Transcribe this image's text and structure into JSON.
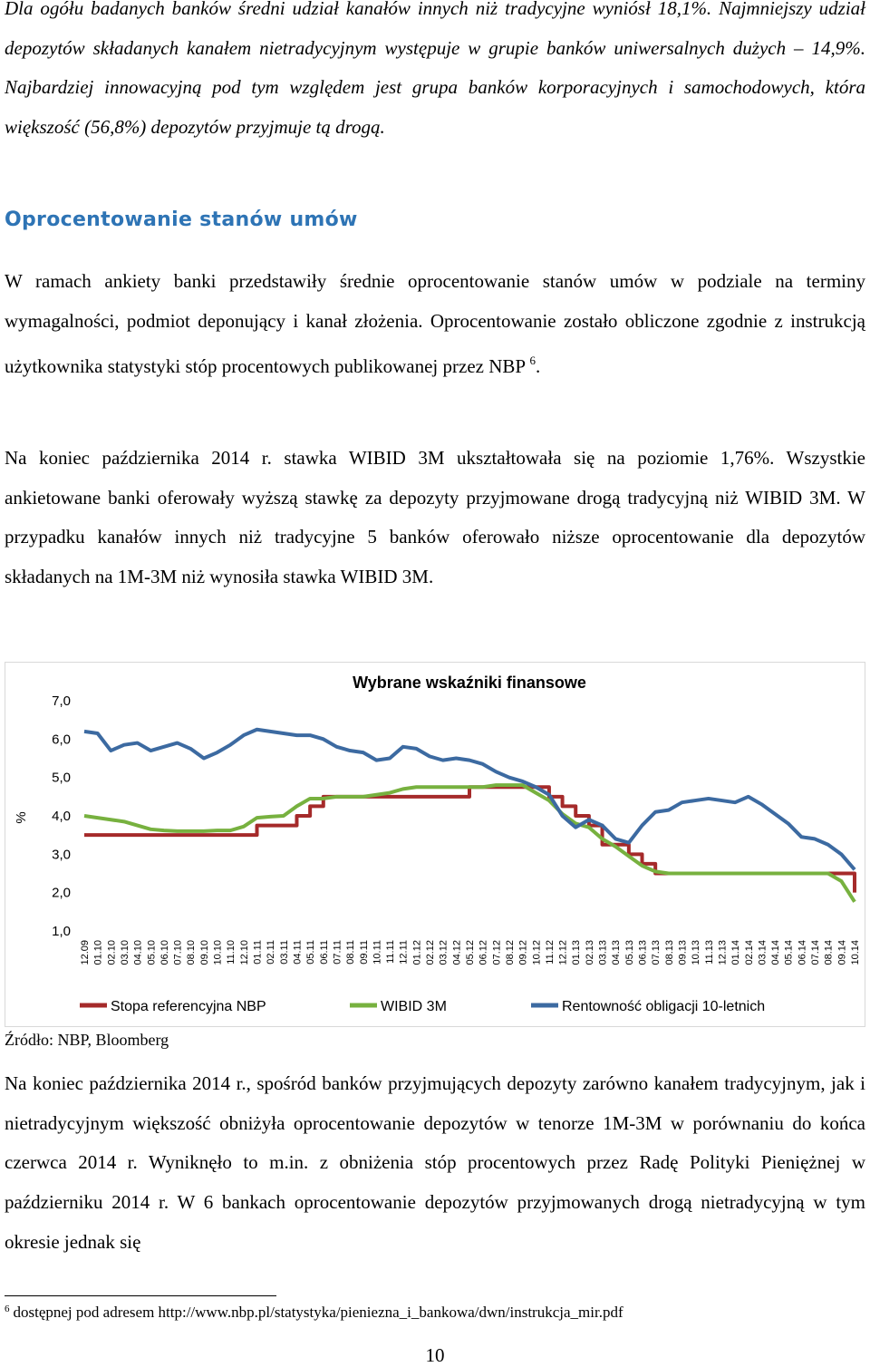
{
  "paragraphs": {
    "p1": "Dla ogółu badanych banków średni udział kanałów innych niż tradycyjne wyniósł 18,1%. Najmniejszy udział depozytów składanych kanałem nietradycyjnym występuje w grupie banków uniwersalnych dużych – 14,9%. Najbardziej innowacyjną pod tym względem jest grupa banków korporacyjnych i samochodowych, która większość (56,8%) depozytów przyjmuje tą drogą.",
    "p2": "W ramach ankiety banki przedstawiły średnie oprocentowanie stanów umów w podziale na terminy wymagalności, podmiot deponujący i kanał złożenia. Oprocentowanie zostało obliczone zgodnie z instrukcją użytkownika statystyki stóp procentowych publikowanej przez NBP",
    "p2_ref": "6",
    "p2_end": ".",
    "p3": "Na koniec października 2014 r. stawka WIBID 3M ukształtowała się na poziomie 1,76%. Wszystkie ankietowane banki oferowały wyższą stawkę za depozyty przyjmowane drogą tradycyjną niż WIBID 3M. W przypadku kanałów innych niż tradycyjne 5 banków oferowało niższe oprocentowanie dla depozytów składanych na 1M-3M niż wynosiła stawka WIBID 3M.",
    "p4": "Na koniec października 2014 r., spośród banków przyjmujących depozyty zarówno kanałem tradycyjnym, jak i nietradycyjnym większość obniżyła oprocentowanie depozytów w tenorze 1M-3M w porównaniu do końca czerwca 2014 r. Wyniknęło to m.in. z obniżenia stóp procentowych przez Radę Polityki Pieniężnej w październiku 2014 r. W 6 bankach oprocentowanie depozytów przyjmowanych drogą nietradycyjną w tym okresie jednak się"
  },
  "heading": "Oprocentowanie stanów umów",
  "source": "Źródło: NBP, Bloomberg",
  "footnote": {
    "number": "6",
    "text": "dostępnej pod adresem http://www.nbp.pl/statystyka/pieniezna_i_bankowa/dwn/instrukcja_mir.pdf"
  },
  "page_number": "10",
  "chart_data": {
    "type": "line",
    "title": "Wybrane wskaźniki finansowe",
    "ylabel": "%",
    "xlabel": "",
    "ylim": [
      1.0,
      7.0
    ],
    "yticks": [
      "7,0",
      "6,0",
      "5,0",
      "4,0",
      "3,0",
      "2,0",
      "1,0"
    ],
    "legend_position": "bottom",
    "x": [
      "12.09",
      "01.10",
      "02.10",
      "03.10",
      "04.10",
      "05.10",
      "06.10",
      "07.10",
      "08.10",
      "09.10",
      "10.10",
      "11.10",
      "12.10",
      "01.11",
      "02.11",
      "03.11",
      "04.11",
      "05.11",
      "06.11",
      "07.11",
      "08.11",
      "09.11",
      "10.11",
      "11.11",
      "12.11",
      "01.12",
      "02.12",
      "03.12",
      "04.12",
      "05.12",
      "06.12",
      "07.12",
      "08.12",
      "09.12",
      "10.12",
      "11.12",
      "12.12",
      "01.13",
      "02.13",
      "03.13",
      "04.13",
      "05.13",
      "06.13",
      "07.13",
      "08.13",
      "09.13",
      "10.13",
      "11.13",
      "12.13",
      "01.14",
      "02.14",
      "03.14",
      "04.14",
      "05.14",
      "06.14",
      "07.14",
      "08.14",
      "09.14",
      "10.14"
    ],
    "series": [
      {
        "name": "Stopa referencyjna NBP",
        "color": "#a52a2a",
        "values": [
          3.5,
          3.5,
          3.5,
          3.5,
          3.5,
          3.5,
          3.5,
          3.5,
          3.5,
          3.5,
          3.5,
          3.5,
          3.5,
          3.75,
          3.75,
          3.75,
          4.0,
          4.25,
          4.5,
          4.5,
          4.5,
          4.5,
          4.5,
          4.5,
          4.5,
          4.5,
          4.5,
          4.5,
          4.5,
          4.75,
          4.75,
          4.75,
          4.75,
          4.75,
          4.75,
          4.5,
          4.25,
          4.0,
          3.75,
          3.25,
          3.25,
          3.0,
          2.75,
          2.5,
          2.5,
          2.5,
          2.5,
          2.5,
          2.5,
          2.5,
          2.5,
          2.5,
          2.5,
          2.5,
          2.5,
          2.5,
          2.5,
          2.5,
          2.0
        ]
      },
      {
        "name": "WIBID 3M",
        "color": "#77b13f",
        "values": [
          4.0,
          3.95,
          3.9,
          3.85,
          3.75,
          3.65,
          3.62,
          3.6,
          3.6,
          3.6,
          3.62,
          3.62,
          3.72,
          3.95,
          3.98,
          4.0,
          4.25,
          4.45,
          4.45,
          4.5,
          4.5,
          4.5,
          4.55,
          4.6,
          4.7,
          4.75,
          4.75,
          4.75,
          4.75,
          4.75,
          4.75,
          4.8,
          4.8,
          4.8,
          4.6,
          4.4,
          4.05,
          3.8,
          3.7,
          3.4,
          3.2,
          2.95,
          2.7,
          2.55,
          2.5,
          2.5,
          2.5,
          2.5,
          2.5,
          2.5,
          2.5,
          2.5,
          2.5,
          2.5,
          2.5,
          2.5,
          2.5,
          2.3,
          1.76
        ]
      },
      {
        "name": "Rentowność obligacji 10-letnich",
        "color": "#3c6aa1",
        "values": [
          6.2,
          6.15,
          5.7,
          5.85,
          5.9,
          5.7,
          5.8,
          5.9,
          5.75,
          5.5,
          5.65,
          5.85,
          6.1,
          6.25,
          6.2,
          6.15,
          6.1,
          6.1,
          6.0,
          5.8,
          5.7,
          5.65,
          5.45,
          5.5,
          5.8,
          5.75,
          5.55,
          5.45,
          5.5,
          5.45,
          5.35,
          5.15,
          5.0,
          4.9,
          4.75,
          4.55,
          4.0,
          3.7,
          3.9,
          3.75,
          3.4,
          3.3,
          3.75,
          4.1,
          4.15,
          4.35,
          4.4,
          4.45,
          4.4,
          4.35,
          4.5,
          4.3,
          4.05,
          3.8,
          3.45,
          3.4,
          3.25,
          3.0,
          2.6
        ]
      }
    ]
  }
}
